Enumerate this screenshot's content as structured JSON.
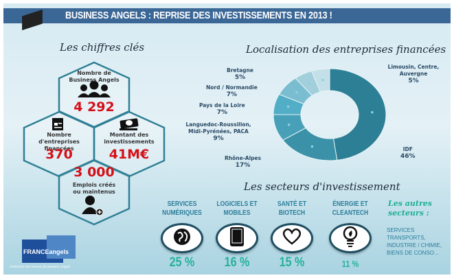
{
  "title": "BUSINESS ANGELS : REPRISE DES INVESTISSEMENTS EN 2013 !",
  "key_figures": {
    "heading": "Les chiffres clés",
    "items": [
      {
        "label": "Nombre de Business Angels",
        "value": "4 292",
        "icon": "group-icon"
      },
      {
        "label": "Nombre d'entreprises financées",
        "value": "370",
        "icon": "document-icon"
      },
      {
        "label": "Montant des investissements",
        "value": "41M€",
        "icon": "money-icon"
      },
      {
        "label": "Emplois créés ou maintenus",
        "value": "3 000",
        "icon": "add-user-icon"
      }
    ]
  },
  "chart_data": {
    "type": "pie",
    "title": "Localisation des entreprises financées",
    "donut": true,
    "categories": [
      "IDF",
      "Rhône-Alpes",
      "Languedoc-Roussillon, Midi-Pyrénées, PACA",
      "Pays de la Loire",
      "Nord / Normandie",
      "Bretagne",
      "Limousin, Centre, Auvergne"
    ],
    "values": [
      46,
      17,
      9,
      7,
      7,
      5,
      5
    ],
    "labels": [
      "46%",
      "17%",
      "9%",
      "7%",
      "7%",
      "5%",
      "5%"
    ],
    "colors": [
      "#2d7f96",
      "#3a91a8",
      "#47a0b7",
      "#52adc6",
      "#7bbdd0",
      "#a2cfdc",
      "#c3e0e8"
    ]
  },
  "sectors": {
    "heading": "Les secteurs d'investissement",
    "items": [
      {
        "name": "SERVICES NUMÉRIQUES",
        "pct": "25 %",
        "icon": "globe-icon"
      },
      {
        "name": "LOGICIELS ET MOBILES",
        "pct": "16 %",
        "icon": "tablet-icon"
      },
      {
        "name": "SANTÉ ET BIOTECH",
        "pct": "15 %",
        "icon": "heart-icon"
      },
      {
        "name": "ÉNERGIE ET CLEANTECH",
        "pct": "11 %",
        "icon": "lightbulb-icon"
      }
    ],
    "others_heading": "Les autres secteurs :",
    "others_text": "SERVICES TRANSPORTS, INDUSTRIE / CHIMIE, BIENS DE CONSO..."
  },
  "logo": {
    "name": "FRANCEangels",
    "tagline": "Fédération des réseaux de Business Angels"
  }
}
